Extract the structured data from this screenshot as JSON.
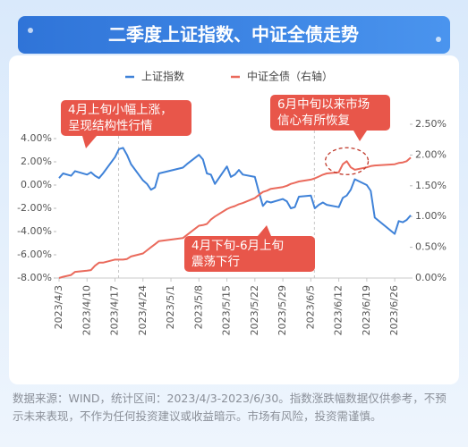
{
  "chart_data": {
    "type": "line",
    "title": "二季度上证指数、中证全债走势",
    "x": [
      "2023/4/3",
      "2023/4/4",
      "2023/4/6",
      "2023/4/7",
      "2023/4/10",
      "2023/4/11",
      "2023/4/12",
      "2023/4/13",
      "2023/4/14",
      "2023/4/17",
      "2023/4/18",
      "2023/4/19",
      "2023/4/20",
      "2023/4/21",
      "2023/4/24",
      "2023/4/25",
      "2023/4/26",
      "2023/4/27",
      "2023/4/28",
      "2023/5/4",
      "2023/5/5",
      "2023/5/8",
      "2023/5/9",
      "2023/5/10",
      "2023/5/11",
      "2023/5/12",
      "2023/5/15",
      "2023/5/16",
      "2023/5/17",
      "2023/5/18",
      "2023/5/19",
      "2023/5/22",
      "2023/5/23",
      "2023/5/24",
      "2023/5/25",
      "2023/5/26",
      "2023/5/29",
      "2023/5/30",
      "2023/5/31",
      "2023/6/1",
      "2023/6/2",
      "2023/6/5",
      "2023/6/6",
      "2023/6/7",
      "2023/6/8",
      "2023/6/9",
      "2023/6/12",
      "2023/6/13",
      "2023/6/14",
      "2023/6/15",
      "2023/6/16",
      "2023/6/19",
      "2023/6/20",
      "2023/6/21",
      "2023/6/26",
      "2023/6/27",
      "2023/6/28",
      "2023/6/29",
      "2023/6/30"
    ],
    "series": [
      {
        "name": "上证指数",
        "color": "#3f82d8",
        "axis": "y",
        "values": [
          0.6,
          1.0,
          0.8,
          1.2,
          0.9,
          1.1,
          0.8,
          0.6,
          1.0,
          2.4,
          3.1,
          3.2,
          2.6,
          1.8,
          0.4,
          0.1,
          -0.4,
          -0.2,
          1.0,
          1.5,
          1.8,
          2.6,
          2.2,
          1.0,
          0.9,
          0.1,
          1.6,
          0.7,
          0.9,
          1.3,
          0.9,
          0.7,
          -0.6,
          -1.8,
          -1.4,
          -1.5,
          -1.2,
          -1.4,
          -2.0,
          -1.9,
          -1.0,
          -0.9,
          -2.0,
          -1.7,
          -1.5,
          -1.7,
          -1.9,
          -1.1,
          -0.9,
          -0.4,
          0.5,
          0.0,
          -0.5,
          -2.8,
          -4.2,
          -3.1,
          -3.2,
          -3.0,
          -2.6
        ]
      },
      {
        "name": "中证全债（右轴）",
        "color": "#ea6a5c",
        "axis": "y2",
        "values": [
          0.0,
          0.02,
          0.05,
          0.1,
          0.12,
          0.13,
          0.2,
          0.25,
          0.25,
          0.3,
          0.3,
          0.3,
          0.31,
          0.35,
          0.4,
          0.45,
          0.5,
          0.55,
          0.6,
          0.65,
          0.7,
          0.85,
          0.86,
          0.88,
          0.95,
          1.0,
          1.12,
          1.15,
          1.17,
          1.2,
          1.22,
          1.3,
          1.35,
          1.4,
          1.42,
          1.45,
          1.48,
          1.5,
          1.53,
          1.55,
          1.57,
          1.6,
          1.62,
          1.65,
          1.68,
          1.7,
          1.72,
          1.85,
          1.9,
          1.8,
          1.76,
          1.8,
          1.82,
          1.83,
          1.85,
          1.87,
          1.88,
          1.9,
          1.96
        ]
      }
    ],
    "xlim": [
      "2023/4/3",
      "2023/6/30"
    ],
    "xticks": [
      "2023/4/3",
      "2023/4/10",
      "2023/4/17",
      "2023/4/24",
      "2023/5/1",
      "2023/5/8",
      "2023/5/15",
      "2023/5/22",
      "2023/5/29",
      "2023/6/5",
      "2023/6/12",
      "2023/6/19",
      "2023/6/26"
    ],
    "ylim": [
      -8,
      4
    ],
    "yticks": [
      {
        "value": -8,
        "label": "-8.00%"
      },
      {
        "value": -6,
        "label": "-6.00%"
      },
      {
        "value": -4,
        "label": "-4.00%"
      },
      {
        "value": -2,
        "label": "-2.00%"
      },
      {
        "value": 0,
        "label": "0.00%"
      },
      {
        "value": 2,
        "label": "2.00%"
      },
      {
        "value": 4,
        "label": "4.00%"
      }
    ],
    "y2lim": [
      0,
      2.5
    ],
    "y2ticks": [
      {
        "value": 0,
        "label": "0.00%"
      },
      {
        "value": 0.5,
        "label": "0.50%"
      },
      {
        "value": 1,
        "label": "1.00%"
      },
      {
        "value": 1.5,
        "label": "1.50%"
      },
      {
        "value": 2,
        "label": "2.00%"
      },
      {
        "value": 2.5,
        "label": "2.50%"
      }
    ],
    "grid": false,
    "legend": "top",
    "annotations": [
      [
        "4月上旬小幅上涨，",
        "呈现结构性行情"
      ],
      [
        "6月中旬以来市场",
        "信心有所恢复"
      ],
      [
        "4月下旬-6月上旬",
        "震荡下行"
      ]
    ],
    "source_note": "数据来源：WIND，统计区间：2023/4/3-2023/6/30。指数涨跌幅数据仅供参考，不预示未来表现，不作为任何投资建议或收益暗示。市场有风险，投资需谨慎。"
  }
}
